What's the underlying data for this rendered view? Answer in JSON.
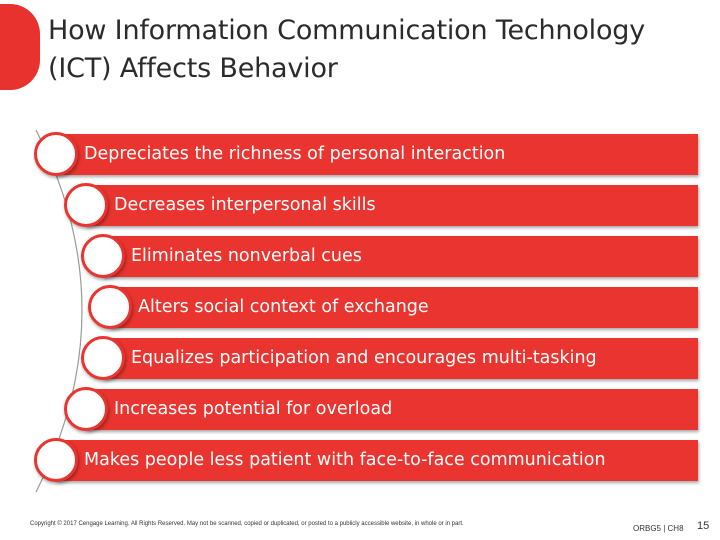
{
  "slide": {
    "title_lines": [
      "How Information Communication Technology",
      "(ICT) Affects Behavior"
    ],
    "items": [
      "Depreciates the richness of personal interaction",
      "Decreases interpersonal skills",
      "Eliminates nonverbal cues",
      "Alters social context of exchange",
      "Equalizes participation and encourages multi-tasking",
      "Increases potential for overload",
      "Makes people less patient with face-to-face communication"
    ],
    "footer": {
      "copyright": "Copyright © 2017 Cengage Learning. All Rights Reserved. May not be scanned, copied or duplicated, or posted to a publicly accessible website, in whole or in part.",
      "course": "ORBG5 | CH8",
      "page_number": "15"
    }
  },
  "colors": {
    "accent": "#e9342f",
    "title": "#2b2b2b",
    "background": "#ffffff"
  }
}
